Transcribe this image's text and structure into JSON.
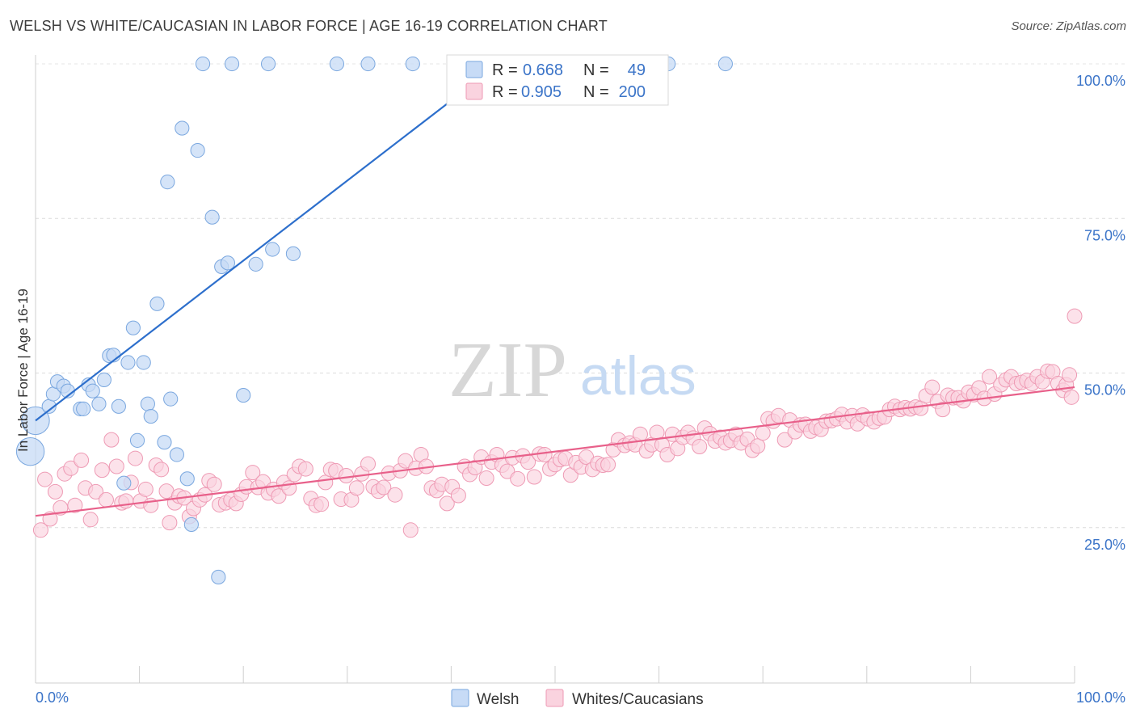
{
  "header": {
    "title": "WELSH VS WHITE/CAUCASIAN IN LABOR FORCE | AGE 16-19 CORRELATION CHART",
    "source": "Source: ZipAtlas.com"
  },
  "watermark": {
    "zip": "ZIP",
    "atlas": "atlas"
  },
  "legend_top": {
    "rows": [
      {
        "r_label": "R =",
        "r_value": "0.668",
        "n_label": "N =",
        "n_value": "49",
        "color": "#a9c9f2"
      },
      {
        "r_label": "R =",
        "r_value": "0.905",
        "n_label": "N =",
        "n_value": "200",
        "color": "#f7b8cb"
      }
    ]
  },
  "legend_bottom": [
    {
      "label": "Welsh",
      "color": "#a9c9f2"
    },
    {
      "label": "Whites/Caucasians",
      "color": "#f7b8cb"
    }
  ],
  "colors": {
    "blue_stroke": "#7aa7df",
    "blue_fill": "#c7dbf6",
    "blue_line": "#2d6fcc",
    "pink_stroke": "#ee9ab4",
    "pink_fill": "#fad3df",
    "pink_line": "#e8608a",
    "tick_text": "#3b74c8"
  },
  "chart_data": {
    "type": "scatter",
    "title": "WELSH VS WHITE/CAUCASIAN IN LABOR FORCE | AGE 16-19 CORRELATION CHART",
    "xlabel": "",
    "ylabel": "In Labor Force | Age 16-19",
    "xlim": [
      0,
      100
    ],
    "ylim": [
      0,
      102
    ],
    "x_tick_labels": [
      "0.0%",
      "100.0%"
    ],
    "y_ticks": [
      25,
      50,
      75,
      100
    ],
    "y_tick_labels": [
      "25.0%",
      "50.0%",
      "75.0%",
      "100.0%"
    ],
    "grid": true,
    "legend_position": "top-center",
    "series": [
      {
        "name": "Welsh",
        "r": 0.668,
        "n": 49,
        "trend": {
          "x": [
            0,
            44.6
          ],
          "y": [
            42.3,
            100
          ]
        },
        "points": [
          [
            0.0,
            42.3,
            22
          ],
          [
            -0.5,
            37.3,
            22
          ],
          [
            1.3,
            44.6,
            11
          ],
          [
            1.7,
            46.6,
            11
          ],
          [
            2.1,
            48.6,
            11
          ],
          [
            2.7,
            47.9,
            11
          ],
          [
            3.1,
            47.1,
            11
          ],
          [
            4.3,
            44.2,
            11
          ],
          [
            4.6,
            44.2,
            11
          ],
          [
            5.1,
            48.1,
            11
          ],
          [
            5.5,
            47.1,
            11
          ],
          [
            6.1,
            45.0,
            11
          ],
          [
            6.6,
            48.9,
            11
          ],
          [
            7.1,
            52.8,
            11
          ],
          [
            7.5,
            52.9,
            11
          ],
          [
            8.0,
            44.6,
            11
          ],
          [
            8.5,
            32.2,
            11
          ],
          [
            8.9,
            51.7,
            11
          ],
          [
            9.4,
            57.3,
            11
          ],
          [
            9.8,
            39.1,
            11
          ],
          [
            10.4,
            51.7,
            11
          ],
          [
            10.8,
            45.0,
            11
          ],
          [
            11.1,
            43.0,
            11
          ],
          [
            11.7,
            61.2,
            11
          ],
          [
            12.4,
            38.8,
            11
          ],
          [
            12.7,
            80.9,
            11
          ],
          [
            13.0,
            45.8,
            11
          ],
          [
            13.6,
            36.8,
            11
          ],
          [
            14.1,
            89.6,
            11
          ],
          [
            14.6,
            32.9,
            11
          ],
          [
            15.0,
            25.5,
            11
          ],
          [
            15.6,
            86.0,
            11
          ],
          [
            16.1,
            100.0,
            11
          ],
          [
            17.0,
            75.2,
            11
          ],
          [
            17.6,
            17.0,
            11
          ],
          [
            17.9,
            67.2,
            11
          ],
          [
            18.5,
            67.8,
            11
          ],
          [
            18.9,
            100.0,
            11
          ],
          [
            20.0,
            46.4,
            11
          ],
          [
            21.2,
            67.6,
            11
          ],
          [
            22.4,
            100.0,
            11
          ],
          [
            22.8,
            70.0,
            11
          ],
          [
            24.8,
            69.3,
            11
          ],
          [
            29.0,
            100.0,
            11
          ],
          [
            32.0,
            100.0,
            11
          ],
          [
            36.3,
            100.0,
            11
          ],
          [
            44.6,
            100.0,
            11
          ],
          [
            60.9,
            100.0,
            11
          ],
          [
            66.4,
            100.0,
            11
          ]
        ]
      },
      {
        "name": "Whites/Caucasians",
        "r": 0.905,
        "n": 200,
        "trend": {
          "x": [
            0,
            100
          ],
          "y": [
            26.9,
            47.7
          ]
        },
        "points": [
          [
            0.5,
            24.6
          ],
          [
            0.9,
            32.8
          ],
          [
            1.4,
            26.4
          ],
          [
            1.9,
            30.8
          ],
          [
            2.4,
            28.2
          ],
          [
            2.8,
            33.7
          ],
          [
            3.4,
            34.6
          ],
          [
            3.8,
            28.6
          ],
          [
            4.4,
            35.9
          ],
          [
            4.8,
            31.4
          ],
          [
            5.3,
            26.3
          ],
          [
            5.8,
            30.8
          ],
          [
            6.4,
            34.3
          ],
          [
            6.8,
            29.5
          ],
          [
            7.3,
            39.2
          ],
          [
            7.8,
            34.9
          ],
          [
            8.3,
            29.0
          ],
          [
            8.7,
            29.3
          ],
          [
            9.2,
            32.3
          ],
          [
            9.6,
            36.2
          ],
          [
            10.1,
            29.3
          ],
          [
            10.6,
            31.2
          ],
          [
            11.1,
            28.6
          ],
          [
            11.6,
            35.1
          ],
          [
            12.1,
            34.4
          ],
          [
            12.6,
            30.9
          ],
          [
            12.9,
            25.8
          ],
          [
            13.4,
            29.0
          ],
          [
            13.8,
            30.1
          ],
          [
            14.3,
            29.8
          ],
          [
            14.8,
            26.8
          ],
          [
            15.2,
            28.1
          ],
          [
            15.8,
            29.5
          ],
          [
            16.3,
            30.3
          ],
          [
            16.7,
            32.6
          ],
          [
            17.2,
            32.0
          ],
          [
            17.7,
            28.7
          ],
          [
            18.3,
            29.0
          ],
          [
            18.8,
            29.5
          ],
          [
            19.3,
            28.9
          ],
          [
            19.8,
            30.4
          ],
          [
            20.3,
            31.6
          ],
          [
            20.9,
            33.9
          ],
          [
            21.4,
            31.5
          ],
          [
            21.9,
            32.4
          ],
          [
            22.4,
            30.6
          ],
          [
            22.9,
            31.2
          ],
          [
            23.4,
            30.1
          ],
          [
            23.9,
            32.3
          ],
          [
            24.4,
            31.4
          ],
          [
            24.9,
            33.6
          ],
          [
            25.4,
            34.9
          ],
          [
            26.0,
            34.5
          ],
          [
            26.5,
            29.7
          ],
          [
            27.0,
            28.6
          ],
          [
            27.5,
            28.8
          ],
          [
            27.9,
            32.3
          ],
          [
            28.4,
            34.4
          ],
          [
            28.9,
            34.2
          ],
          [
            29.4,
            29.6
          ],
          [
            29.9,
            33.4
          ],
          [
            30.4,
            29.5
          ],
          [
            30.9,
            31.4
          ],
          [
            31.4,
            33.7
          ],
          [
            32.0,
            35.3
          ],
          [
            32.5,
            31.6
          ],
          [
            33.0,
            30.9
          ],
          [
            33.5,
            31.5
          ],
          [
            34.0,
            33.8
          ],
          [
            34.6,
            30.3
          ],
          [
            35.1,
            34.2
          ],
          [
            35.6,
            35.8
          ],
          [
            36.1,
            24.6
          ],
          [
            36.6,
            34.6
          ],
          [
            37.1,
            36.8
          ],
          [
            37.6,
            34.9
          ],
          [
            38.1,
            31.4
          ],
          [
            38.6,
            31.0
          ],
          [
            39.1,
            32.0
          ],
          [
            39.6,
            28.9
          ],
          [
            40.1,
            31.6
          ],
          [
            40.7,
            30.2
          ],
          [
            41.3,
            34.9
          ],
          [
            41.8,
            33.6
          ],
          [
            42.3,
            34.7
          ],
          [
            42.9,
            36.4
          ],
          [
            43.4,
            33.0
          ],
          [
            43.9,
            35.6
          ],
          [
            44.4,
            36.8
          ],
          [
            44.9,
            35.1
          ],
          [
            45.4,
            34.1
          ],
          [
            45.9,
            36.3
          ],
          [
            46.4,
            32.9
          ],
          [
            46.9,
            36.6
          ],
          [
            47.4,
            35.6
          ],
          [
            48.0,
            33.2
          ],
          [
            48.5,
            36.9
          ],
          [
            49.0,
            36.8
          ],
          [
            49.5,
            34.5
          ],
          [
            50.0,
            35.2
          ],
          [
            50.5,
            36.0
          ],
          [
            51.0,
            36.2
          ],
          [
            51.5,
            33.5
          ],
          [
            52.0,
            35.5
          ],
          [
            52.5,
            34.8
          ],
          [
            53.0,
            36.4
          ],
          [
            53.6,
            34.4
          ],
          [
            54.1,
            35.4
          ],
          [
            54.6,
            35.1
          ],
          [
            55.1,
            35.2
          ],
          [
            55.6,
            37.6
          ],
          [
            56.1,
            39.2
          ],
          [
            56.7,
            38.3
          ],
          [
            57.2,
            38.7
          ],
          [
            57.7,
            38.4
          ],
          [
            58.2,
            40.1
          ],
          [
            58.8,
            37.4
          ],
          [
            59.3,
            38.4
          ],
          [
            59.8,
            40.4
          ],
          [
            60.3,
            38.4
          ],
          [
            60.8,
            36.8
          ],
          [
            61.3,
            40.1
          ],
          [
            61.8,
            37.8
          ],
          [
            62.3,
            39.6
          ],
          [
            62.8,
            40.4
          ],
          [
            63.3,
            39.5
          ],
          [
            63.9,
            38.1
          ],
          [
            64.4,
            41.1
          ],
          [
            64.9,
            40.2
          ],
          [
            65.4,
            39.0
          ],
          [
            65.9,
            39.6
          ],
          [
            66.4,
            38.7
          ],
          [
            66.9,
            39.1
          ],
          [
            67.4,
            40.1
          ],
          [
            67.9,
            38.7
          ],
          [
            68.5,
            39.3
          ],
          [
            69.0,
            37.5
          ],
          [
            69.5,
            38.2
          ],
          [
            70.0,
            40.3
          ],
          [
            70.5,
            42.6
          ],
          [
            71.0,
            42.2
          ],
          [
            71.5,
            43.1
          ],
          [
            72.1,
            39.2
          ],
          [
            72.6,
            42.4
          ],
          [
            73.1,
            40.5
          ],
          [
            73.6,
            41.6
          ],
          [
            74.1,
            41.7
          ],
          [
            74.6,
            40.6
          ],
          [
            75.1,
            41.2
          ],
          [
            75.6,
            40.9
          ],
          [
            76.1,
            42.2
          ],
          [
            76.6,
            42.3
          ],
          [
            77.1,
            42.6
          ],
          [
            77.6,
            43.3
          ],
          [
            78.1,
            42.1
          ],
          [
            78.6,
            43.1
          ],
          [
            79.1,
            41.8
          ],
          [
            79.6,
            43.2
          ],
          [
            80.1,
            42.6
          ],
          [
            80.7,
            42.1
          ],
          [
            81.2,
            42.7
          ],
          [
            81.7,
            42.9
          ],
          [
            82.2,
            44.1
          ],
          [
            82.7,
            44.6
          ],
          [
            83.2,
            44.1
          ],
          [
            83.7,
            44.4
          ],
          [
            84.2,
            44.2
          ],
          [
            84.7,
            44.5
          ],
          [
            85.2,
            44.3
          ],
          [
            85.7,
            46.3
          ],
          [
            86.3,
            47.7
          ],
          [
            86.8,
            45.4
          ],
          [
            87.3,
            44.1
          ],
          [
            87.8,
            46.4
          ],
          [
            88.3,
            46.0
          ],
          [
            88.8,
            46.0
          ],
          [
            89.3,
            45.5
          ],
          [
            89.8,
            46.9
          ],
          [
            90.3,
            46.5
          ],
          [
            90.8,
            47.6
          ],
          [
            91.3,
            45.9
          ],
          [
            91.8,
            49.4
          ],
          [
            92.3,
            46.6
          ],
          [
            92.9,
            48.1
          ],
          [
            93.4,
            48.9
          ],
          [
            93.9,
            49.4
          ],
          [
            94.4,
            48.3
          ],
          [
            94.9,
            48.5
          ],
          [
            95.4,
            48.8
          ],
          [
            95.9,
            48.3
          ],
          [
            96.4,
            49.4
          ],
          [
            96.9,
            48.6
          ],
          [
            97.4,
            50.3
          ],
          [
            97.9,
            50.2
          ],
          [
            98.4,
            48.3
          ],
          [
            98.9,
            47.2
          ],
          [
            99.2,
            48.1
          ],
          [
            99.5,
            49.7
          ],
          [
            99.7,
            46.1
          ],
          [
            100.0,
            59.2
          ]
        ]
      }
    ]
  }
}
